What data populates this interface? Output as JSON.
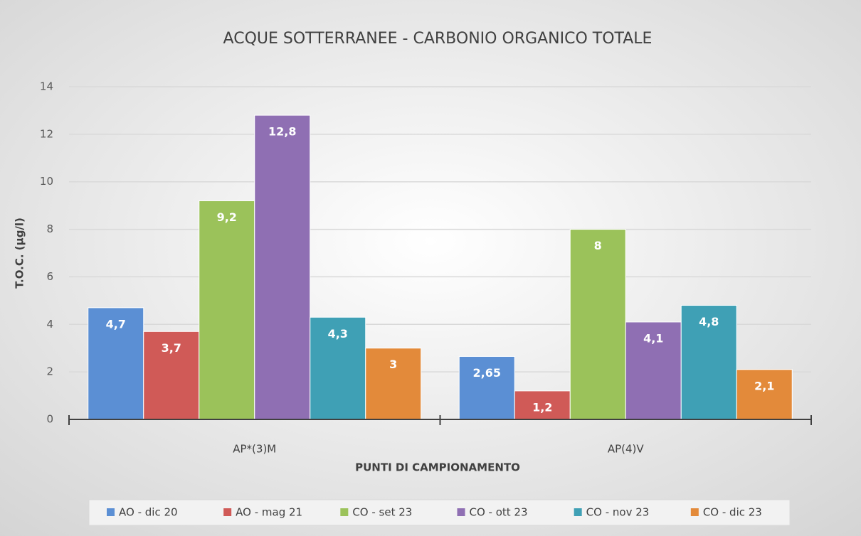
{
  "chart_data": {
    "type": "bar",
    "title": "ACQUE SOTTERRANEE - CARBONIO ORGANICO TOTALE",
    "xlabel": "PUNTI DI CAMPIONAMENTO",
    "ylabel": "T.O.C. (µg/l)",
    "categories": [
      "AP*(3)M",
      "AP(4)V"
    ],
    "series": [
      {
        "name": "AO - dic 20",
        "color": "#5b8fd4",
        "values": [
          4.7,
          2.65
        ],
        "value_labels": [
          "4,7",
          "2,65"
        ]
      },
      {
        "name": "AO - mag 21",
        "color": "#d05a57",
        "values": [
          3.7,
          1.2
        ],
        "value_labels": [
          "3,7",
          "1,2"
        ]
      },
      {
        "name": "CO - set 23",
        "color": "#9bc25a",
        "values": [
          9.2,
          8
        ],
        "value_labels": [
          "9,2",
          "8"
        ]
      },
      {
        "name": "CO - ott 23",
        "color": "#8f6fb3",
        "values": [
          12.8,
          4.1
        ],
        "value_labels": [
          "12,8",
          "4,1"
        ]
      },
      {
        "name": "CO - nov 23",
        "color": "#3fa0b5",
        "values": [
          4.3,
          4.8
        ],
        "value_labels": [
          "4,3",
          "4,8"
        ]
      },
      {
        "name": "CO - dic 23",
        "color": "#e38a3a",
        "values": [
          3,
          2.1
        ],
        "value_labels": [
          "3",
          "2,1"
        ]
      }
    ],
    "ylim": [
      0,
      14
    ],
    "yticks": [
      0,
      2,
      4,
      6,
      8,
      10,
      12,
      14
    ],
    "grid": true,
    "legend": "bottom"
  }
}
